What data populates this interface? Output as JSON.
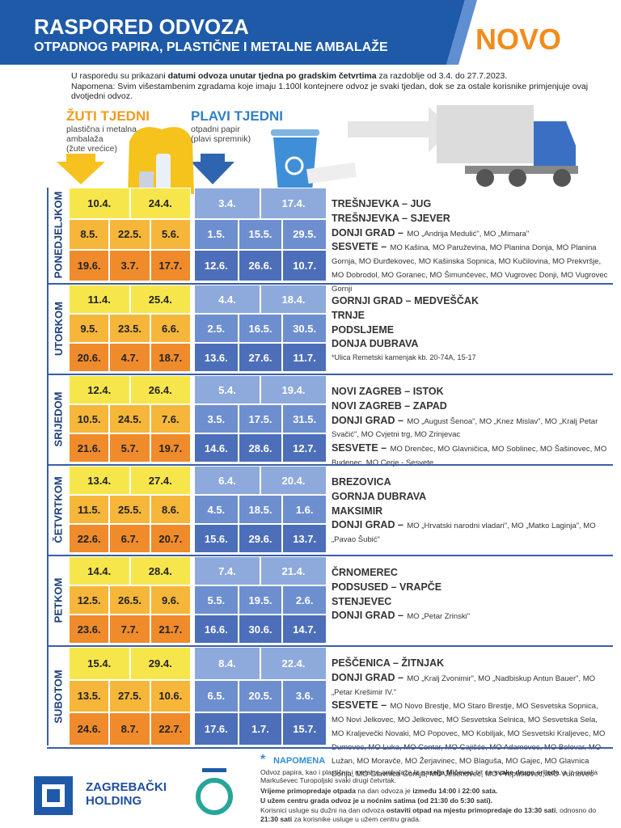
{
  "header": {
    "title": "RASPORED ODVOZA",
    "subtitle": "OTPADNOG PAPIRA, PLASTIČNE I METALNE AMBALAŽE",
    "badge": "NOVO"
  },
  "intro": {
    "parts": [
      "U rasporedu su prikazani ",
      "datumi odvoza unutar tjedna po gradskim četvrtima",
      " za razdoblje od 3.4. do 27.7.2023."
    ],
    "note": "Napomena: Svim višestambenim zgradama koje imaju 1.100l kontejnere odvoz je svaki tjedan, dok se za ostale korisnike primjenjuje ovaj dvotjedni odvoz."
  },
  "yellow": {
    "title": "ŽUTI TJEDNI",
    "lines": [
      "plastična i metalna",
      "ambalaža",
      "(žute vrećice)"
    ]
  },
  "blue": {
    "title": "PLAVI TJEDNI",
    "lines": [
      "otpadni papir",
      "(plavi spremnik)"
    ]
  },
  "days": [
    {
      "name": "PONEDJELJKOM",
      "yellow": [
        [
          "10.4.",
          "24.4."
        ],
        [
          "8.5.",
          "22.5.",
          "5.6."
        ],
        [
          "19.6.",
          "3.7.",
          "17.7."
        ]
      ],
      "blue": [
        [
          "3.4.",
          "17.4."
        ],
        [
          "1.5.",
          "15.5.",
          "29.5."
        ],
        [
          "12.6.",
          "26.6.",
          "10.7."
        ]
      ],
      "areas": [
        {
          "name": "TREŠNJEVKA – JUG"
        },
        {
          "name": "TREŠNJEVKA – SJEVER"
        },
        {
          "name": "DONJI GRAD –",
          "detail": "MO „Andrija Medulić\", MO „Mimara\""
        },
        {
          "name": "SESVETE –",
          "detail": "MO Kašina, MO Paruževina, MO Planina Donja, MO Planina Gornja, MO Đurđekovec, MO Kašinska Sopnica, MO Kučilovina, MO Prekvršje, MO Dobrodol, MO Goranec, MO Šimunčevec, MO Vugrovec Donji, MO Vugrovec Gornji"
        }
      ]
    },
    {
      "name": "UTORKOM",
      "yellow": [
        [
          "11.4.",
          "25.4."
        ],
        [
          "9.5.",
          "23.5.",
          "6.6."
        ],
        [
          "20.6.",
          "4.7.",
          "18.7."
        ]
      ],
      "blue": [
        [
          "4.4.",
          "18.4."
        ],
        [
          "2.5.",
          "16.5.",
          "30.5."
        ],
        [
          "13.6.",
          "27.6.",
          "11.7."
        ]
      ],
      "areas": [
        {
          "name": "GORNJI GRAD – MEDVEŠČAK"
        },
        {
          "name": "TRNJE"
        },
        {
          "name": "PODSLJEME"
        },
        {
          "name": "DONJA DUBRAVA"
        }
      ],
      "footnote": "*Ulica Remetski kamenjak kb. 20-74A, 15-17"
    },
    {
      "name": "SRIJEDOM",
      "yellow": [
        [
          "12.4.",
          "26.4."
        ],
        [
          "10.5.",
          "24.5.",
          "7.6."
        ],
        [
          "21.6.",
          "5.7.",
          "19.7."
        ]
      ],
      "blue": [
        [
          "5.4.",
          "19.4."
        ],
        [
          "3.5.",
          "17.5.",
          "31.5."
        ],
        [
          "14.6.",
          "28.6.",
          "12.7."
        ]
      ],
      "areas": [
        {
          "name": "NOVI ZAGREB – ISTOK"
        },
        {
          "name": "NOVI ZAGREB – ZAPAD"
        },
        {
          "name": "DONJI GRAD –",
          "detail": "MO „August Šenoa\", MO „Knez Mislav\", MO „Kralj Petar Svačić\", MO Cvjetni trg, MO Zrinjevac"
        },
        {
          "name": "SESVETE –",
          "detail": "MO Drenčec, MO Glavničica, MO Soblinec, MO Šašinovec, MO Budenec, MO Cerje - Sesvete"
        }
      ]
    },
    {
      "name": "ČETVRTKOM",
      "yellow": [
        [
          "13.4.",
          "27.4."
        ],
        [
          "11.5.",
          "25.5.",
          "8.6."
        ],
        [
          "22.6.",
          "6.7.",
          "20.7."
        ]
      ],
      "blue": [
        [
          "6.4.",
          "20.4."
        ],
        [
          "4.5.",
          "18.5.",
          "1.6."
        ],
        [
          "15.6.",
          "29.6.",
          "13.7."
        ]
      ],
      "areas": [
        {
          "name": "BREZOVICA"
        },
        {
          "name": "GORNJA DUBRAVA"
        },
        {
          "name": "MAKSIMIR"
        },
        {
          "name": "DONJI GRAD –",
          "detail": "MO „Hrvatski narodni vladari\", MO „Matko Laginja\", MO „Pavao Šubić\""
        }
      ]
    },
    {
      "name": "PETKOM",
      "yellow": [
        [
          "14.4.",
          "28.4."
        ],
        [
          "12.5.",
          "26.5.",
          "9.6."
        ],
        [
          "23.6.",
          "7.7.",
          "21.7."
        ]
      ],
      "blue": [
        [
          "7.4.",
          "21.4."
        ],
        [
          "5.5.",
          "19.5.",
          "2.6."
        ],
        [
          "16.6.",
          "30.6.",
          "14.7."
        ]
      ],
      "areas": [
        {
          "name": "ČRNOMEREC"
        },
        {
          "name": "PODSUSED – VRAPČE"
        },
        {
          "name": "STENJEVEC"
        },
        {
          "name": "DONJI GRAD –",
          "detail": "MO „Petar Zrinski\""
        }
      ]
    },
    {
      "name": "SUBOTOM",
      "yellow": [
        [
          "15.4.",
          "29.4."
        ],
        [
          "13.5.",
          "27.5.",
          "10.6."
        ],
        [
          "24.6.",
          "8.7.",
          "22.7."
        ]
      ],
      "blue": [
        [
          "8.4.",
          "22.4."
        ],
        [
          "6.5.",
          "20.5.",
          "3.6."
        ],
        [
          "17.6.",
          "1.7.",
          "15.7."
        ]
      ],
      "areas": [
        {
          "name": "PEŠČENICA – ŽITNJAK"
        },
        {
          "name": "DONJI GRAD –",
          "detail": "MO „Kralj Zvonimir\", MO „Nadbiskup Antun Bauer\", MO „Petar Krešimir IV.\""
        },
        {
          "name": "SESVETE –",
          "detail": "MO Novo Brestje, MO Staro Brestje, MO Sesvetska Sopnica, MO Novi Jelkovec, MO Jelkovec, MO Sesvetska Selnica, MO Sesvetska Sela, MO Kraljevečki Novaki, MO Popovec, MO Kobiljak, MO Sesvetski Kraljevec, MO Dumovec, MO Luka, MO Centar, MO Gajišće, MO Adamovec, MO Belovar, MO Lužan, MO Moravče, MO Žerjavinec, MO Blaguša, MO Gajec, MO Glavnica Donja, MO Glavnica Gornja, MO Jesenovec, MO Prepuštovec, MO Vurnovec"
        }
      ]
    }
  ],
  "footer": {
    "note_title": "NAPOMENA",
    "paragraphs": [
      [
        "Odvoz papira, kao i plastične i metalne ambalaže ",
        "iz naselja Mičevec",
        " bit će ",
        "svake druge srijede",
        ", a iz naselja Markuševec Turopoljski svaki drugi četvrtak."
      ],
      [
        "",
        "Vrijeme primopredaje otpada",
        " na dan odvoza je ",
        "između 14:00 i 22:00 sata."
      ],
      [
        "",
        "U užem centru grada odvoz je u noćnim satima (od 21:30 do 5:30 sati)."
      ],
      [
        "Korisnici usluge su dužni na dan odvoza ",
        "ostaviti otpad na mjestu primopredaje do 13:30 sati",
        ", odnosno do ",
        "21:30 sati",
        " za korisnike usluge u užem centru grada."
      ]
    ],
    "logo": [
      "ZAGREBAČKI",
      "HOLDING"
    ]
  }
}
